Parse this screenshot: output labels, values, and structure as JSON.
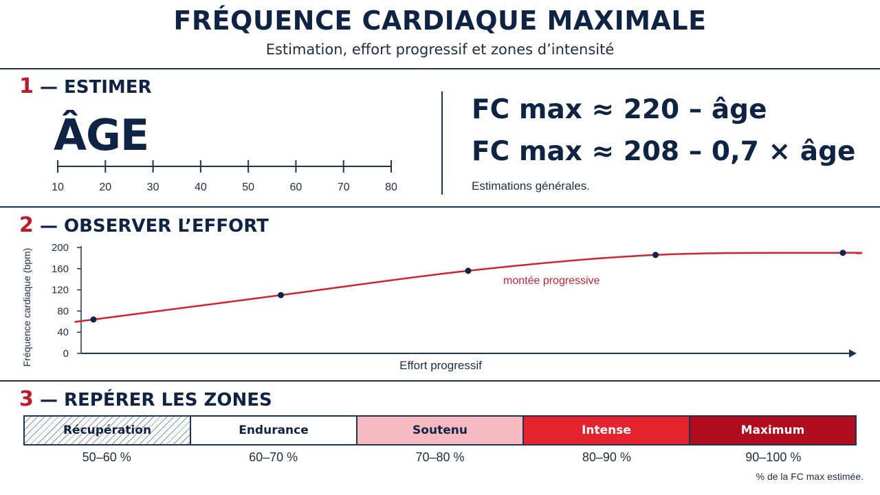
{
  "header": {
    "title": "FRÉQUENCE CARDIAQUE MAXIMALE",
    "subtitle": "Estimation, effort progressif et zones d’intensité"
  },
  "section1": {
    "number": "1",
    "label": "— ESTIMER",
    "age_label": "ÂGE",
    "age_ticks": [
      10,
      20,
      30,
      40,
      50,
      60,
      70,
      80
    ],
    "formula1": "FC max ≈ 220 – âge",
    "formula2": "FC max ≈ 208 – 0,7 × âge",
    "note": "Estimations générales."
  },
  "section2": {
    "number": "2",
    "label": "— OBSERVER L’EFFORT"
  },
  "chart_data": {
    "type": "line",
    "title": "",
    "xlabel": "Effort progressif",
    "ylabel": "Fréquence cardiaque (bpm)",
    "ylim": [
      0,
      200
    ],
    "yticks": [
      0,
      40,
      80,
      120,
      160,
      200
    ],
    "grid": false,
    "annotation": "montée progressive",
    "curve_color": "#d42030",
    "point_color": "#0f2444",
    "series": [
      {
        "x": [
          0.0,
          0.25,
          0.5,
          0.75,
          1.0
        ],
        "values": [
          64,
          110,
          156,
          186,
          190
        ]
      }
    ]
  },
  "section3": {
    "number": "3",
    "label": "— REPÉRER LES ZONES",
    "zones": [
      {
        "name": "Récupération",
        "range": "50–60 %",
        "color": "hatched"
      },
      {
        "name": "Endurance",
        "range": "60–70 %",
        "color": "#ffffff"
      },
      {
        "name": "Soutenu",
        "range": "70–80 %",
        "color": "#f6b9bf"
      },
      {
        "name": "Intense",
        "range": "80–90 %",
        "color": "#e4232f"
      },
      {
        "name": "Maximum",
        "range": "90–100 %",
        "color": "#b10c1e"
      }
    ],
    "note": "% de la FC max estimée."
  }
}
